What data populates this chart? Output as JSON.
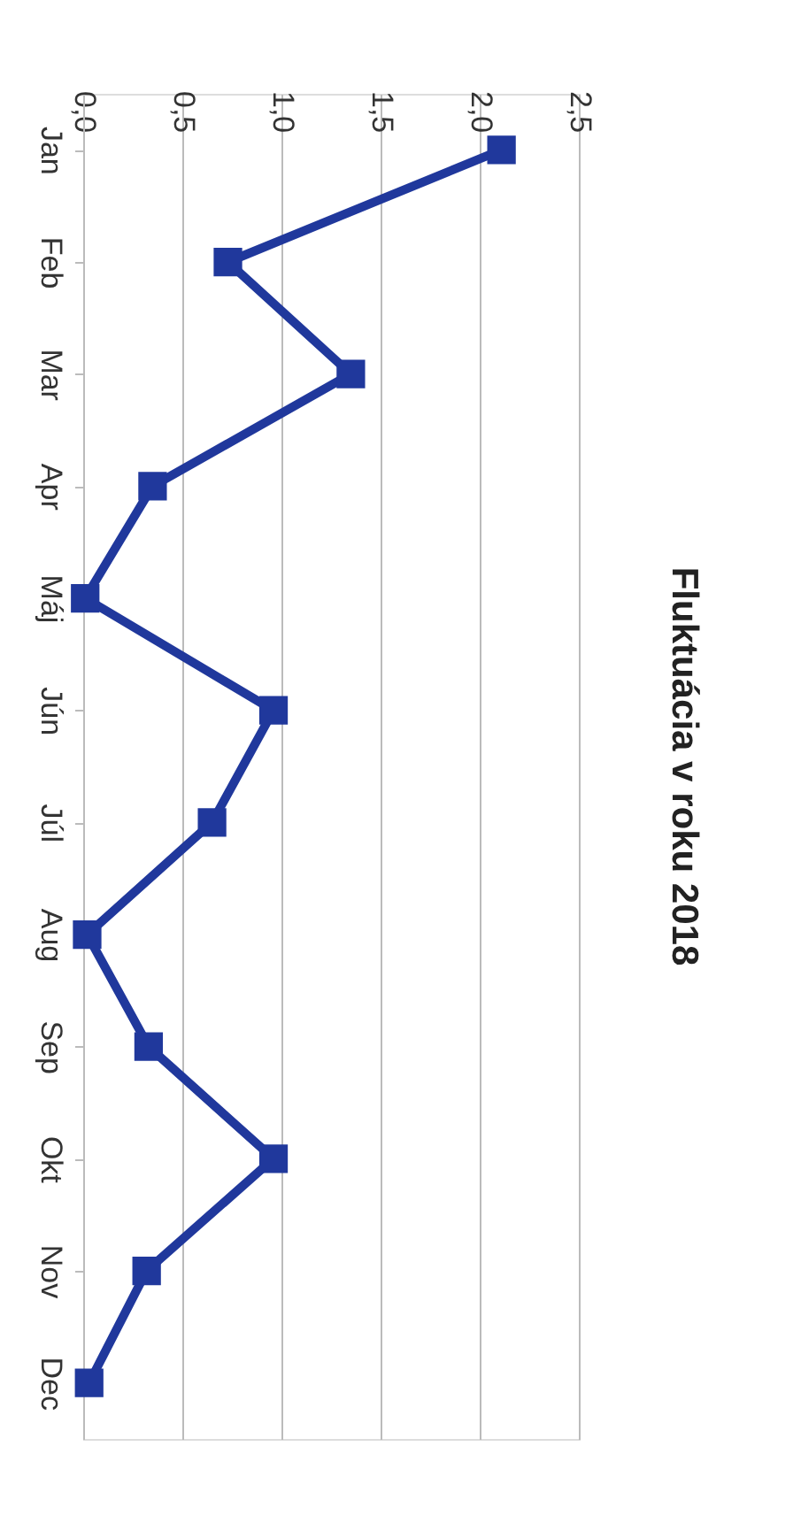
{
  "chart_data": {
    "type": "line",
    "orientation": "horizontal",
    "title": "Fluktuácia v roku 2018",
    "categories": [
      "Jan",
      "Feb",
      "Mar",
      "Apr",
      "Máj",
      "Jún",
      "Júl",
      "Aug",
      "Sep",
      "Okt",
      "Nov",
      "Dec"
    ],
    "series": [
      {
        "color": "#20389c",
        "values": [
          2.11,
          0.73,
          1.35,
          0.35,
          0.01,
          0.96,
          0.65,
          0.02,
          0.33,
          0.96,
          0.32,
          0.03
        ]
      }
    ],
    "xlim": [
      0,
      2.5
    ],
    "xticks": [
      {
        "value": 0,
        "label": "0,0"
      },
      {
        "value": 0.5,
        "label": "0,5"
      },
      {
        "value": 1,
        "label": "1,0"
      },
      {
        "value": 1.5,
        "label": "1,5"
      },
      {
        "value": 2,
        "label": "2,0"
      },
      {
        "value": 2.5,
        "label": "2,5"
      }
    ],
    "grid": "x",
    "marker": "square",
    "line_style": "solid"
  }
}
